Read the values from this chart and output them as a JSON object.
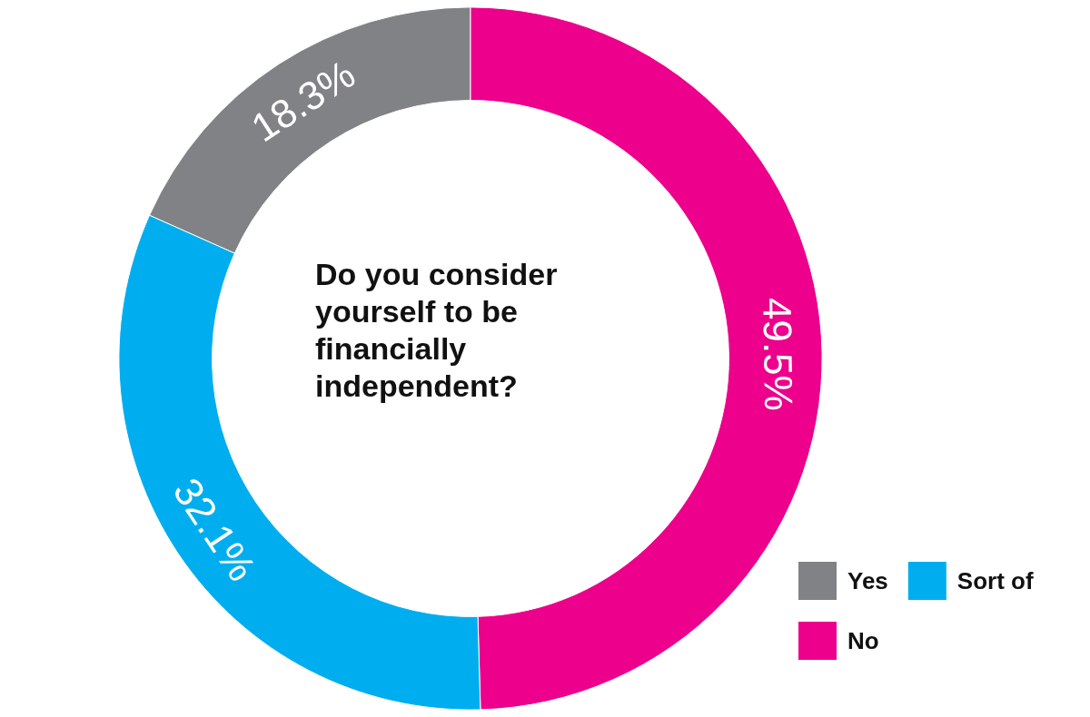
{
  "chart_data": {
    "type": "donut",
    "title": "Do you consider yourself to be financially independent?",
    "categories": [
      "Yes",
      "No",
      "Sort of"
    ],
    "values": [
      18.3,
      49.5,
      32.1
    ],
    "value_labels": [
      "18.3%",
      "49.5%",
      "32.1%"
    ],
    "colors": [
      "#808285",
      "#ec008c",
      "#00aeef"
    ],
    "legend": "bottom right"
  }
}
